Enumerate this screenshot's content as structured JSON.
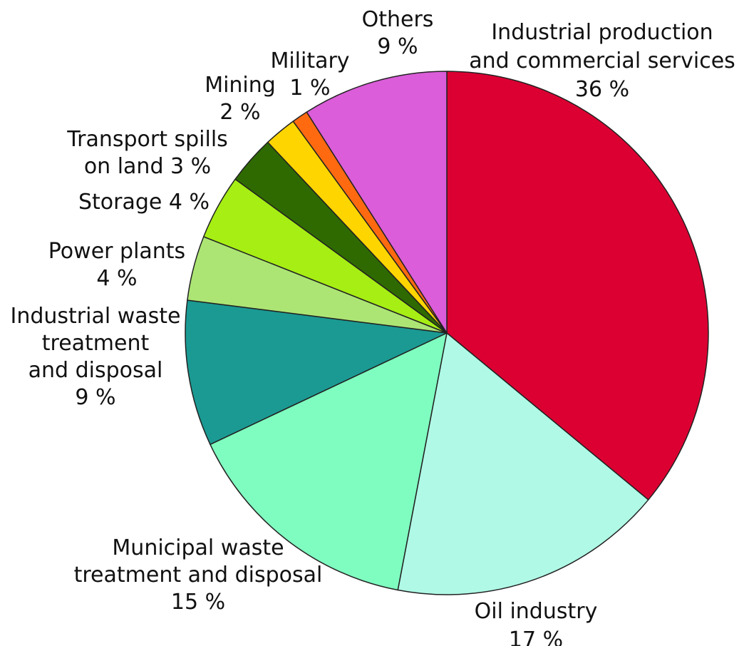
{
  "chart_data": {
    "type": "pie",
    "start_angle_deg": 0,
    "direction": "clockwise",
    "slices": [
      {
        "label_lines": [
          "Industrial production",
          "and commercial services",
          "36 %"
        ],
        "value": 36,
        "color": "#DC0032"
      },
      {
        "label_lines": [
          "Oil industry",
          "17 %"
        ],
        "value": 17,
        "color": "#B0F9E6"
      },
      {
        "label_lines": [
          "Municipal waste",
          "treatment and disposal",
          "15 %"
        ],
        "value": 15,
        "color": "#7FFDC0"
      },
      {
        "label_lines": [
          "Industrial waste",
          "treatment",
          "and disposal",
          "9 %"
        ],
        "value": 9,
        "color": "#1A9A93"
      },
      {
        "label_lines": [
          "Power plants",
          "4 %"
        ],
        "value": 4,
        "color": "#ACE574"
      },
      {
        "label_lines": [
          "Storage 4 %"
        ],
        "value": 4,
        "color": "#A6EE14"
      },
      {
        "label_lines": [
          "Transport spills",
          "on land 3 %"
        ],
        "value": 3,
        "color": "#2F6A00"
      },
      {
        "label_lines": [
          "Mining",
          "2 %"
        ],
        "value": 2,
        "color": "#FFD500"
      },
      {
        "label_lines": [
          "Military",
          "1 %"
        ],
        "value": 1,
        "color": "#FF6A10"
      },
      {
        "label_lines": [
          "Others",
          "9 %"
        ],
        "value": 9,
        "color": "#DB5DD9"
      }
    ]
  }
}
